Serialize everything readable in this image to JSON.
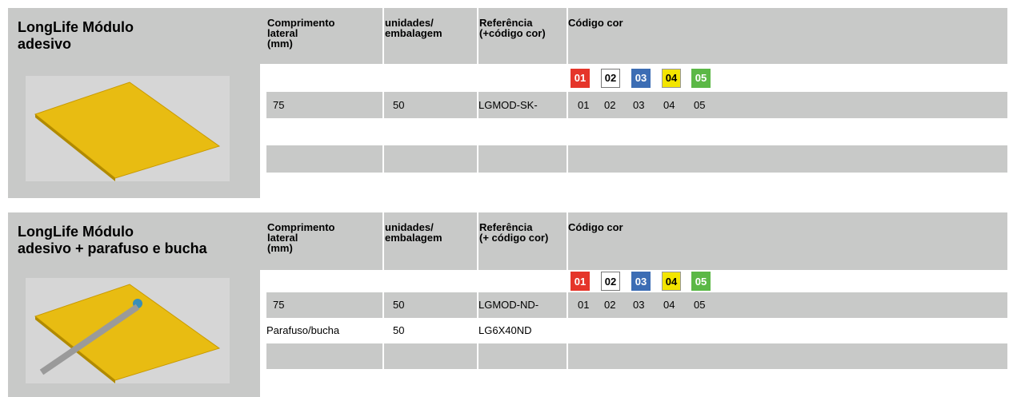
{
  "sections": [
    {
      "title": "LongLife Módulo\nadesivo",
      "columns": [
        "Comprimento\nlateral\n(mm)",
        "unidades/\nembalagem",
        "Referência\n(+código cor)",
        "Código  cor"
      ],
      "chips": [
        "01",
        "02",
        "03",
        "04",
        "05"
      ],
      "rows": [
        [
          "75",
          "50",
          "LGMOD-SK-",
          [
            "01",
            "02",
            "03",
            "04",
            "05"
          ]
        ]
      ]
    },
    {
      "title": "LongLife Módulo\nadesivo + parafuso e bucha",
      "columns": [
        "Comprimento\nlateral\n(mm)",
        "unidades/\nembalagem",
        "Referência\n(+ código cor)",
        "Código cor"
      ],
      "chips": [
        "01",
        "02",
        "03",
        "04",
        "05"
      ],
      "rows": [
        [
          "75",
          "50",
          "LGMOD-ND-",
          [
            "01",
            "02",
            "03",
            "04",
            "05"
          ]
        ],
        [
          "Parafuso/bucha",
          "50",
          "LG6X40ND"
        ]
      ]
    }
  ]
}
